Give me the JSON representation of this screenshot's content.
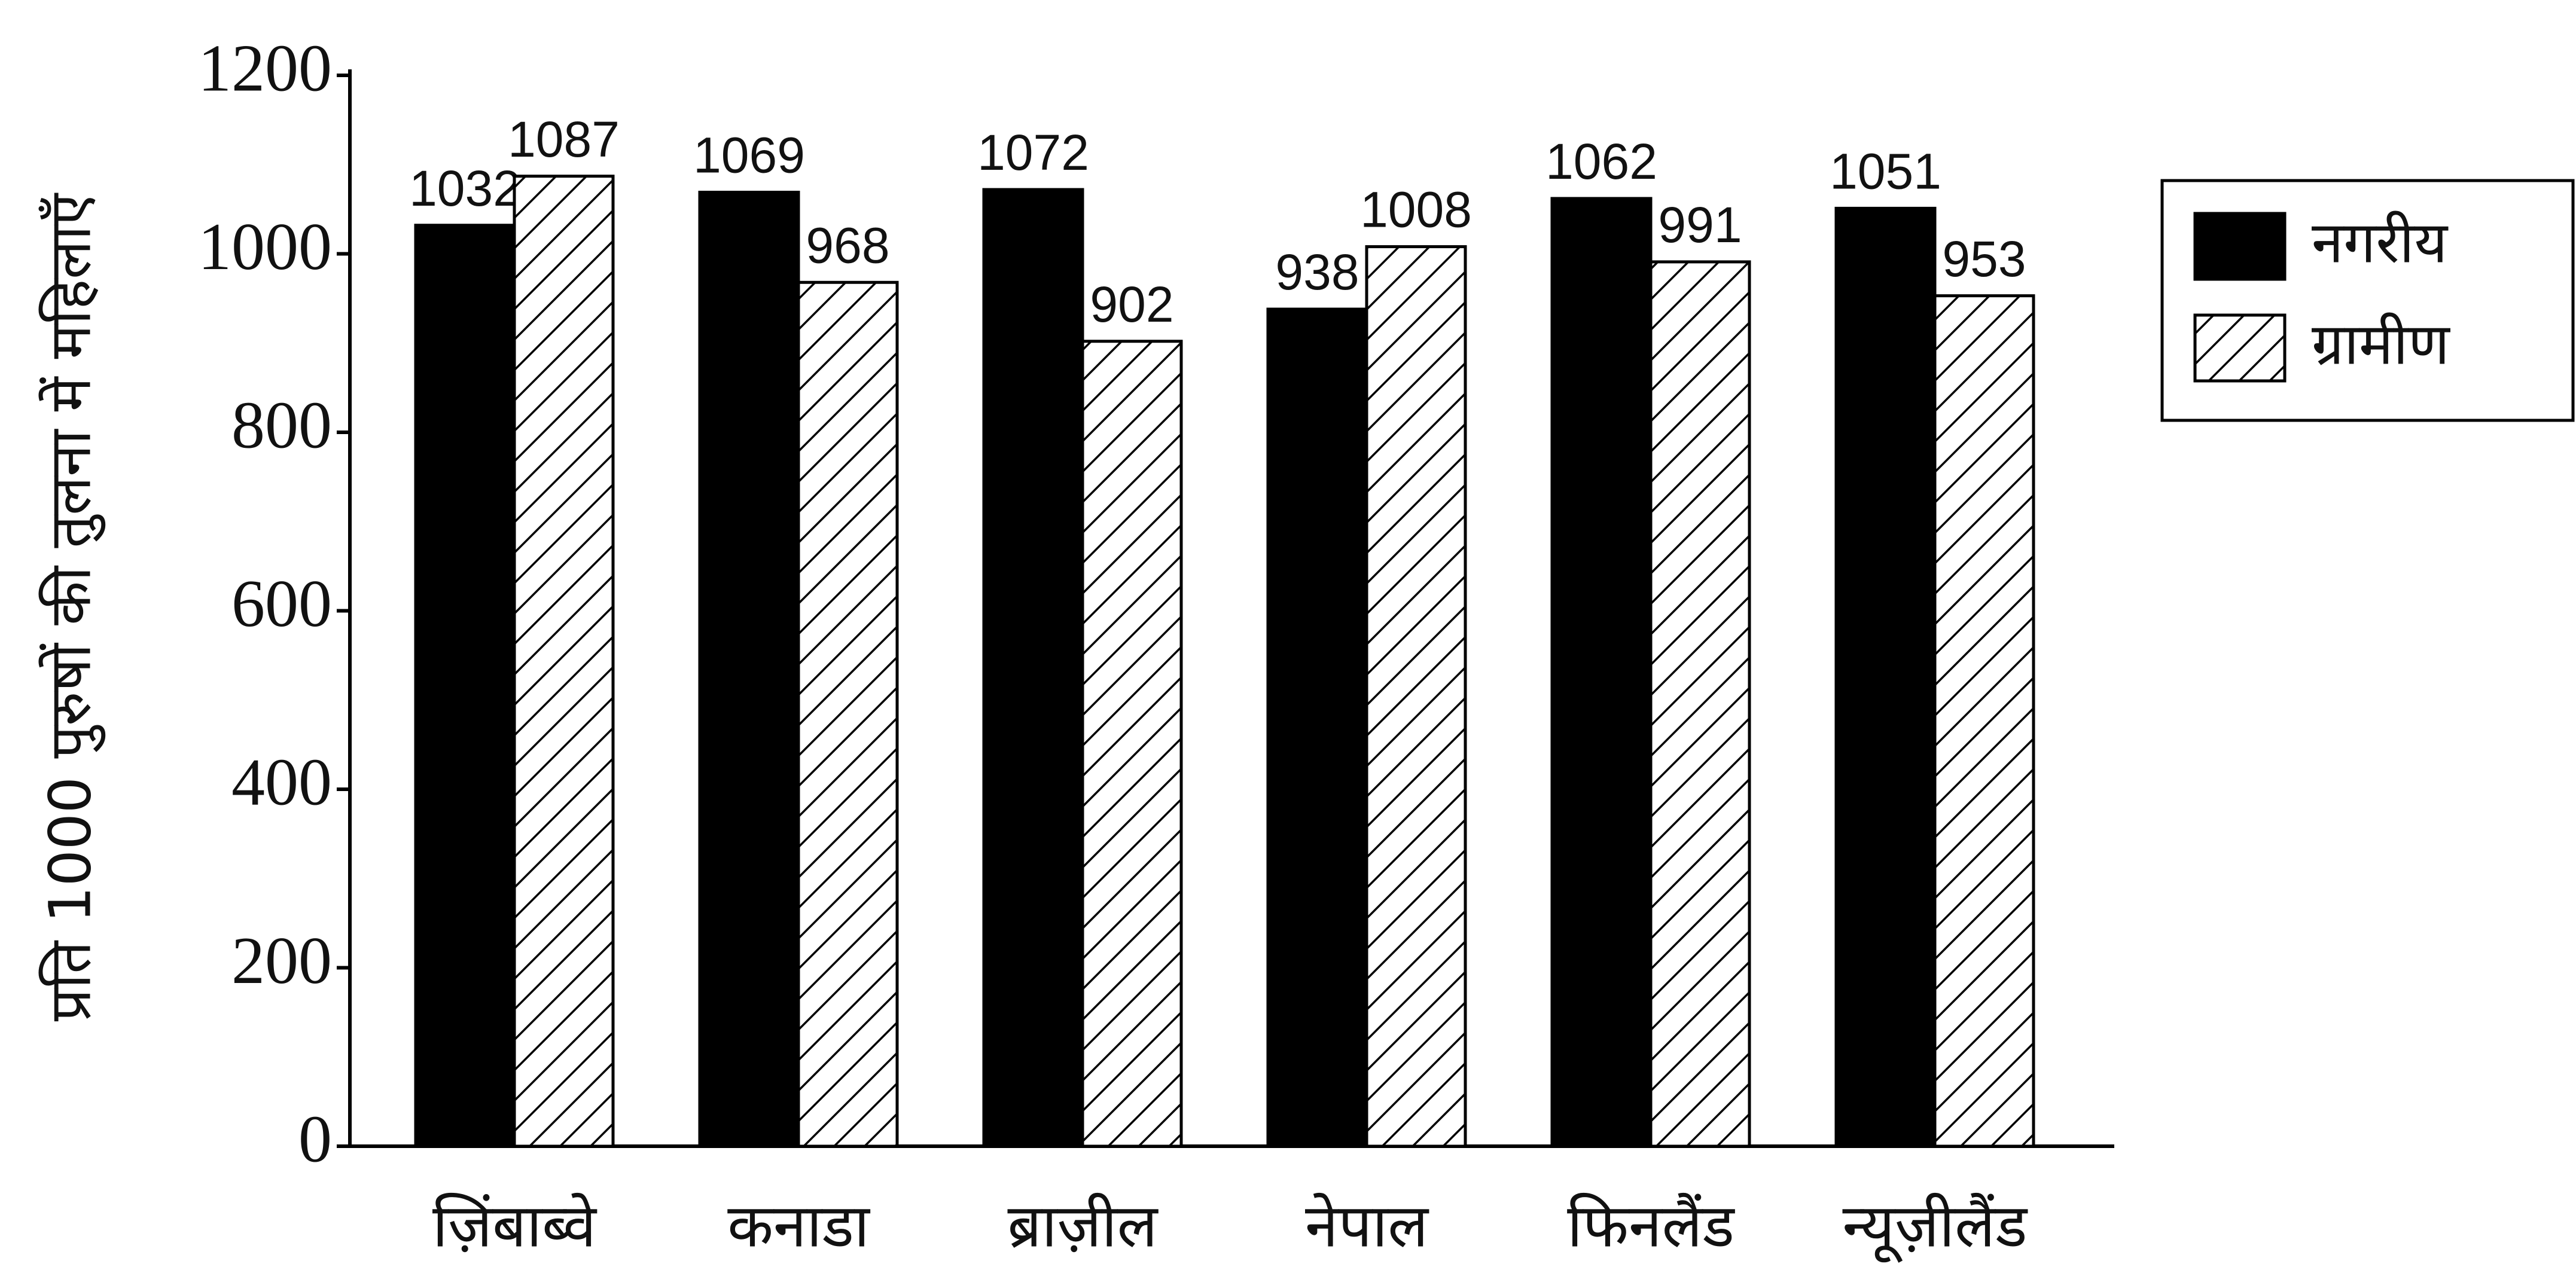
{
  "chart_data": {
    "type": "bar",
    "y_label": "प्रति 1000 पुरुषों की तुलना में महिलाएँ",
    "categories": [
      "ज़िंबाब्वे",
      "कनाडा",
      "ब्राज़ील",
      "नेपाल",
      "फिनलैंड",
      "न्यूज़ीलैंड"
    ],
    "series": [
      {
        "name": "नगरीय",
        "color": "#000000",
        "hatch": false,
        "values": [
          1032,
          1069,
          1072,
          938,
          1062,
          1051
        ]
      },
      {
        "name": "ग्रामीण",
        "color": "#000000",
        "hatch": true,
        "values": [
          1087,
          968,
          902,
          1008,
          991,
          953
        ]
      }
    ],
    "ylim": [
      0,
      1200
    ],
    "yticks": [
      0,
      200,
      400,
      600,
      800,
      1000,
      1200
    ],
    "grid": false,
    "legend": "upper right"
  }
}
